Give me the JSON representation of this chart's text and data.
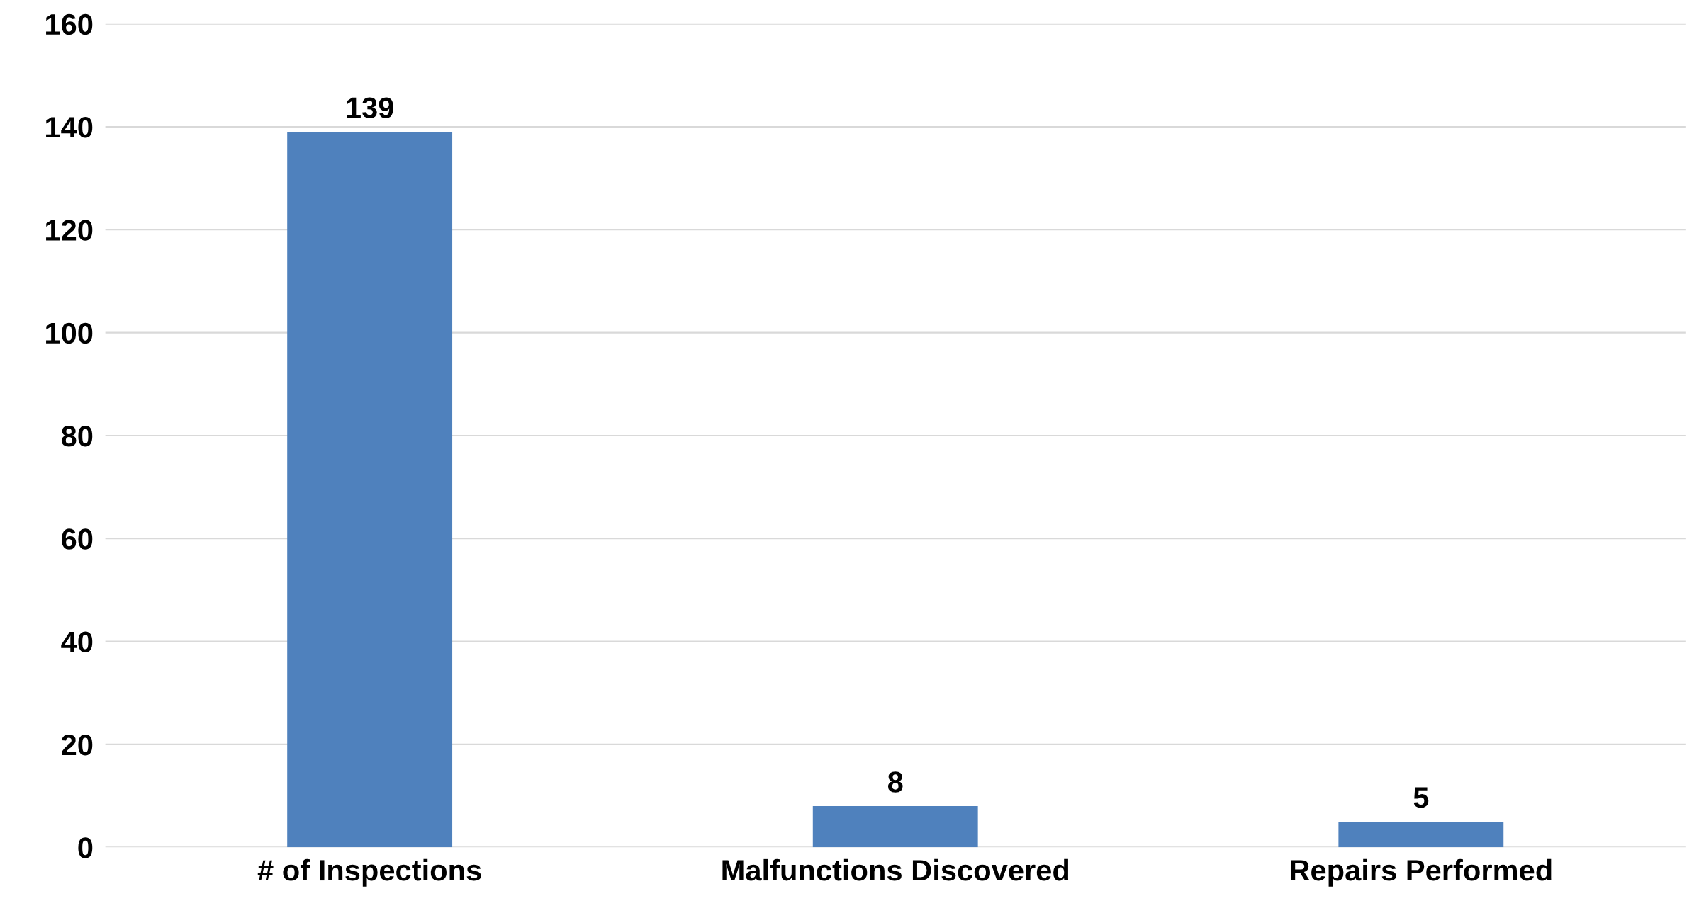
{
  "chart_data": {
    "type": "bar",
    "categories": [
      "# of Inspections",
      "Malfunctions Discovered",
      "Repairs Performed"
    ],
    "values": [
      139,
      8,
      5
    ],
    "color": "#4f81bd",
    "ylim": [
      0,
      160
    ],
    "yticks": [
      0,
      20,
      40,
      60,
      80,
      100,
      120,
      140,
      160
    ],
    "grid": "y",
    "data_labels": true
  }
}
